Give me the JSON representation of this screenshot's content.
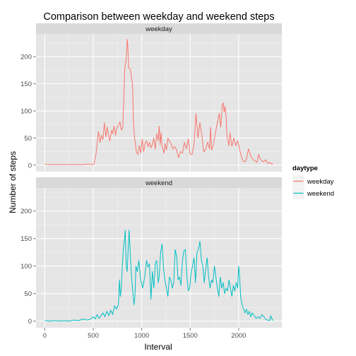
{
  "chart_data": {
    "type": "line",
    "title": "Comparison between weekday and weekend steps",
    "xlabel": "Interval",
    "ylabel": "Number of steps",
    "xlim": [
      -90,
      2445
    ],
    "ylim": [
      -12,
      242
    ],
    "x_ticks": [
      0,
      500,
      1000,
      1500,
      2000
    ],
    "y_ticks": [
      0,
      50,
      100,
      150,
      200
    ],
    "grid": true,
    "legend": {
      "title": "daytype",
      "position": "right",
      "entries": [
        {
          "label": "weekday",
          "color": "#F8766D"
        },
        {
          "label": "weekend",
          "color": "#00BFC4"
        }
      ]
    },
    "panels": [
      {
        "label": "weekday",
        "color": "#F8766D",
        "points": [
          [
            0,
            2
          ],
          [
            50,
            1
          ],
          [
            100,
            1
          ],
          [
            200,
            1
          ],
          [
            300,
            1
          ],
          [
            400,
            1
          ],
          [
            450,
            2
          ],
          [
            500,
            1
          ],
          [
            510,
            4
          ],
          [
            520,
            12
          ],
          [
            530,
            22
          ],
          [
            545,
            48
          ],
          [
            555,
            62
          ],
          [
            570,
            42
          ],
          [
            585,
            55
          ],
          [
            600,
            47
          ],
          [
            615,
            78
          ],
          [
            630,
            52
          ],
          [
            645,
            70
          ],
          [
            655,
            58
          ],
          [
            670,
            45
          ],
          [
            690,
            64
          ],
          [
            700,
            58
          ],
          [
            715,
            72
          ],
          [
            730,
            55
          ],
          [
            745,
            70
          ],
          [
            760,
            72
          ],
          [
            775,
            80
          ],
          [
            790,
            65
          ],
          [
            805,
            70
          ],
          [
            815,
            120
          ],
          [
            825,
            178
          ],
          [
            835,
            190
          ],
          [
            845,
            210
          ],
          [
            850,
            232
          ],
          [
            855,
            225
          ],
          [
            865,
            180
          ],
          [
            875,
            178
          ],
          [
            885,
            175
          ],
          [
            895,
            160
          ],
          [
            905,
            150
          ],
          [
            915,
            80
          ],
          [
            925,
            52
          ],
          [
            935,
            40
          ],
          [
            945,
            24
          ],
          [
            960,
            20
          ],
          [
            975,
            36
          ],
          [
            990,
            22
          ],
          [
            1005,
            48
          ],
          [
            1020,
            25
          ],
          [
            1035,
            40
          ],
          [
            1050,
            45
          ],
          [
            1065,
            34
          ],
          [
            1080,
            42
          ],
          [
            1095,
            32
          ],
          [
            1110,
            38
          ],
          [
            1125,
            50
          ],
          [
            1140,
            30
          ],
          [
            1155,
            58
          ],
          [
            1170,
            45
          ],
          [
            1180,
            72
          ],
          [
            1190,
            38
          ],
          [
            1200,
            60
          ],
          [
            1210,
            34
          ],
          [
            1220,
            30
          ],
          [
            1230,
            22
          ],
          [
            1240,
            40
          ],
          [
            1255,
            28
          ],
          [
            1270,
            50
          ],
          [
            1285,
            45
          ],
          [
            1300,
            40
          ],
          [
            1320,
            30
          ],
          [
            1340,
            34
          ],
          [
            1360,
            28
          ],
          [
            1380,
            14
          ],
          [
            1400,
            25
          ],
          [
            1420,
            22
          ],
          [
            1440,
            42
          ],
          [
            1460,
            30
          ],
          [
            1480,
            48
          ],
          [
            1500,
            20
          ],
          [
            1520,
            20
          ],
          [
            1540,
            40
          ],
          [
            1560,
            95
          ],
          [
            1580,
            50
          ],
          [
            1600,
            78
          ],
          [
            1620,
            55
          ],
          [
            1640,
            24
          ],
          [
            1660,
            30
          ],
          [
            1680,
            42
          ],
          [
            1700,
            30
          ],
          [
            1710,
            70
          ],
          [
            1720,
            28
          ],
          [
            1740,
            38
          ],
          [
            1760,
            60
          ],
          [
            1780,
            78
          ],
          [
            1800,
            95
          ],
          [
            1815,
            70
          ],
          [
            1830,
            110
          ],
          [
            1840,
            115
          ],
          [
            1850,
            98
          ],
          [
            1860,
            108
          ],
          [
            1870,
            90
          ],
          [
            1880,
            50
          ],
          [
            1890,
            45
          ],
          [
            1900,
            36
          ],
          [
            1910,
            60
          ],
          [
            1930,
            35
          ],
          [
            1950,
            50
          ],
          [
            1970,
            36
          ],
          [
            1990,
            45
          ],
          [
            2010,
            28
          ],
          [
            2030,
            15
          ],
          [
            2045,
            8
          ],
          [
            2060,
            6
          ],
          [
            2080,
            10
          ],
          [
            2100,
            30
          ],
          [
            2115,
            22
          ],
          [
            2130,
            15
          ],
          [
            2150,
            10
          ],
          [
            2170,
            8
          ],
          [
            2190,
            5
          ],
          [
            2205,
            20
          ],
          [
            2220,
            12
          ],
          [
            2240,
            8
          ],
          [
            2260,
            6
          ],
          [
            2280,
            10
          ],
          [
            2300,
            3
          ],
          [
            2320,
            5
          ],
          [
            2340,
            2
          ],
          [
            2355,
            3
          ]
        ]
      },
      {
        "label": "weekend",
        "color": "#00BFC4",
        "points": [
          [
            0,
            1
          ],
          [
            50,
            0
          ],
          [
            100,
            1
          ],
          [
            150,
            0
          ],
          [
            200,
            1
          ],
          [
            250,
            0
          ],
          [
            300,
            2
          ],
          [
            350,
            1
          ],
          [
            400,
            4
          ],
          [
            430,
            2
          ],
          [
            460,
            3
          ],
          [
            480,
            5
          ],
          [
            500,
            8
          ],
          [
            520,
            4
          ],
          [
            540,
            12
          ],
          [
            560,
            5
          ],
          [
            580,
            10
          ],
          [
            600,
            15
          ],
          [
            620,
            8
          ],
          [
            640,
            18
          ],
          [
            660,
            10
          ],
          [
            680,
            20
          ],
          [
            700,
            12
          ],
          [
            720,
            28
          ],
          [
            740,
            22
          ],
          [
            760,
            30
          ],
          [
            770,
            75
          ],
          [
            780,
            45
          ],
          [
            790,
            60
          ],
          [
            800,
            100
          ],
          [
            810,
            130
          ],
          [
            820,
            145
          ],
          [
            830,
            165
          ],
          [
            840,
            100
          ],
          [
            850,
            90
          ],
          [
            860,
            130
          ],
          [
            870,
            165
          ],
          [
            880,
            130
          ],
          [
            890,
            95
          ],
          [
            900,
            70
          ],
          [
            910,
            50
          ],
          [
            920,
            30
          ],
          [
            930,
            45
          ],
          [
            940,
            100
          ],
          [
            955,
            90
          ],
          [
            970,
            110
          ],
          [
            990,
            75
          ],
          [
            1010,
            60
          ],
          [
            1030,
            80
          ],
          [
            1050,
            110
          ],
          [
            1065,
            98
          ],
          [
            1080,
            104
          ],
          [
            1095,
            40
          ],
          [
            1110,
            90
          ],
          [
            1125,
            60
          ],
          [
            1140,
            105
          ],
          [
            1155,
            110
          ],
          [
            1170,
            70
          ],
          [
            1180,
            80
          ],
          [
            1195,
            125
          ],
          [
            1210,
            140
          ],
          [
            1225,
            95
          ],
          [
            1240,
            75
          ],
          [
            1255,
            60
          ],
          [
            1270,
            45
          ],
          [
            1285,
            80
          ],
          [
            1300,
            75
          ],
          [
            1315,
            60
          ],
          [
            1330,
            70
          ],
          [
            1345,
            130
          ],
          [
            1360,
            118
          ],
          [
            1375,
            75
          ],
          [
            1390,
            80
          ],
          [
            1405,
            65
          ],
          [
            1420,
            110
          ],
          [
            1435,
            128
          ],
          [
            1450,
            130
          ],
          [
            1465,
            82
          ],
          [
            1480,
            55
          ],
          [
            1495,
            60
          ],
          [
            1510,
            90
          ],
          [
            1525,
            100
          ],
          [
            1540,
            115
          ],
          [
            1555,
            70
          ],
          [
            1570,
            125
          ],
          [
            1585,
            130
          ],
          [
            1600,
            145
          ],
          [
            1615,
            112
          ],
          [
            1630,
            100
          ],
          [
            1645,
            70
          ],
          [
            1660,
            95
          ],
          [
            1675,
            115
          ],
          [
            1690,
            80
          ],
          [
            1705,
            60
          ],
          [
            1720,
            75
          ],
          [
            1735,
            70
          ],
          [
            1750,
            100
          ],
          [
            1765,
            80
          ],
          [
            1780,
            60
          ],
          [
            1795,
            45
          ],
          [
            1810,
            80
          ],
          [
            1825,
            60
          ],
          [
            1840,
            70
          ],
          [
            1855,
            50
          ],
          [
            1870,
            60
          ],
          [
            1885,
            55
          ],
          [
            1900,
            75
          ],
          [
            1915,
            60
          ],
          [
            1930,
            45
          ],
          [
            1945,
            65
          ],
          [
            1960,
            55
          ],
          [
            1975,
            70
          ],
          [
            1990,
            60
          ],
          [
            2000,
            100
          ],
          [
            2010,
            80
          ],
          [
            2020,
            45
          ],
          [
            2035,
            30
          ],
          [
            2050,
            22
          ],
          [
            2065,
            15
          ],
          [
            2080,
            22
          ],
          [
            2095,
            12
          ],
          [
            2110,
            18
          ],
          [
            2125,
            8
          ],
          [
            2140,
            15
          ],
          [
            2160,
            10
          ],
          [
            2180,
            5
          ],
          [
            2200,
            8
          ],
          [
            2220,
            5
          ],
          [
            2240,
            12
          ],
          [
            2260,
            8
          ],
          [
            2280,
            3
          ],
          [
            2300,
            2
          ],
          [
            2320,
            1
          ],
          [
            2330,
            10
          ],
          [
            2345,
            3
          ],
          [
            2355,
            1
          ]
        ]
      }
    ]
  }
}
